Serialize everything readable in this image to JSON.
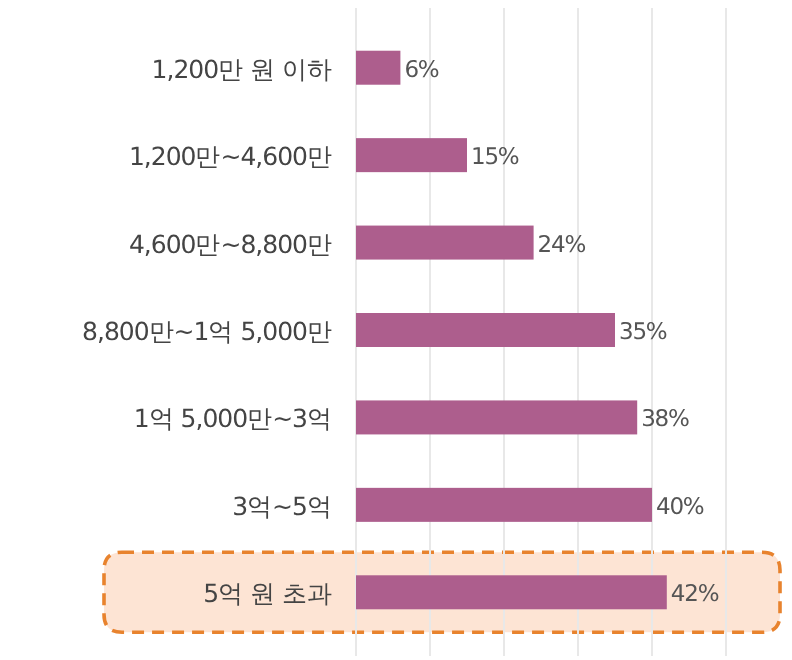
{
  "chart_data": {
    "type": "bar",
    "orientation": "horizontal",
    "categories": [
      "1,200만 원 이하",
      "1,200만~4,600만",
      "4,600만~8,800만",
      "8,800만~1억 5,000만",
      "1억 5,000만~3억",
      "3억~5억",
      "5억 원 초과"
    ],
    "values": [
      6,
      15,
      24,
      35,
      38,
      40,
      42
    ],
    "value_labels": [
      "6%",
      "15%",
      "24%",
      "35%",
      "38%",
      "40%",
      "42%"
    ],
    "color": "#ad5e8d",
    "xticks": [
      {
        "value": 0,
        "label": null
      },
      {
        "value": 10,
        "label": null
      },
      {
        "value": 20,
        "label": null
      },
      {
        "value": 30,
        "label": null
      },
      {
        "value": 40,
        "label": null
      },
      {
        "value": 50,
        "label": null
      }
    ],
    "bands": [
      {
        "axis": "y",
        "from": "5억 원 초과",
        "to": "5억 원 초과",
        "color": "#fde4d4"
      }
    ],
    "grid": "x",
    "tick_labels": "y"
  }
}
